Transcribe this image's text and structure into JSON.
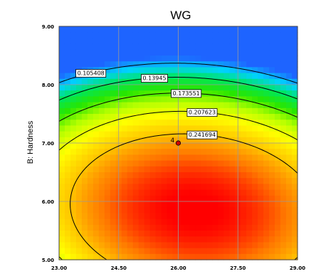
{
  "chart_data": {
    "type": "heatmap",
    "title": "WG",
    "xlabel": "",
    "ylabel": "B: Hardness",
    "xlim": [
      23.0,
      29.0
    ],
    "ylim": [
      5.0,
      9.0
    ],
    "x_ticks": [
      "23.00",
      "24.50",
      "26.00",
      "27.50",
      "29.00"
    ],
    "y_ticks": [
      "5.00",
      "6.00",
      "7.00",
      "8.00",
      "9.00"
    ],
    "colorscale": [
      "#1e64ff",
      "#00d2ff",
      "#00e65a",
      "#28e600",
      "#b4ff00",
      "#ffff00",
      "#ffc800",
      "#ff7800",
      "#ff0000"
    ],
    "contours": [
      {
        "level": 0.105408,
        "label": "0.105408"
      },
      {
        "level": 0.13945,
        "label": "0.13945"
      },
      {
        "level": 0.173551,
        "label": "0.173551"
      },
      {
        "level": 0.207623,
        "label": "0.207623"
      },
      {
        "level": 0.241694,
        "label": "0.241694"
      }
    ],
    "design_point": {
      "x": 26.0,
      "y": 7.0,
      "label": "4"
    },
    "grid": true
  }
}
